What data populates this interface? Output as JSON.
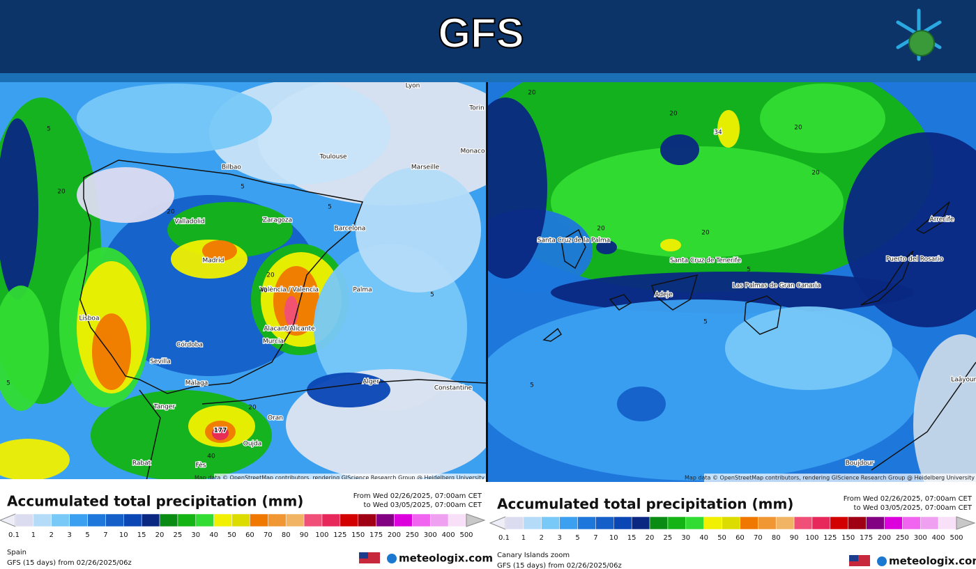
{
  "header": {
    "title": "GFS"
  },
  "legend": {
    "labels": [
      "0.1",
      "1",
      "2",
      "3",
      "5",
      "7",
      "10",
      "15",
      "20",
      "25",
      "30",
      "40",
      "50",
      "60",
      "70",
      "80",
      "90",
      "100",
      "125",
      "150",
      "175",
      "200",
      "250",
      "300",
      "400",
      "500"
    ],
    "colors": [
      "#dcdcf0",
      "#b4dcf8",
      "#78c8f8",
      "#3ca0f0",
      "#1e78dc",
      "#1460c8",
      "#0a46b4",
      "#0a2882",
      "#0a8c14",
      "#14b414",
      "#32dc32",
      "#f0f000",
      "#dcdc00",
      "#f07800",
      "#f09632",
      "#f0b464",
      "#f05078",
      "#e6285a",
      "#d20000",
      "#a00014",
      "#820082",
      "#dc00dc",
      "#f064f0",
      "#f0a0f0",
      "#f8e0f8"
    ]
  },
  "panels": [
    {
      "title": "Accumulated total precipitation (mm)",
      "date_from": "From Wed 02/26/2025, 07:00am CET",
      "date_to": "to Wed 03/05/2025, 07:00am CET",
      "region": "Spain",
      "model_line": "GFS (15 days) from  02/26/2025/06z",
      "brand": "meteologix.com",
      "credit": "Map data © OpenStreetMap contributors, rendering GIScience Research Group @ Heidelberg University",
      "places": [
        "Lyon",
        "Torin",
        "Toulouse",
        "Monaco",
        "Bilbao",
        "Marseille",
        "Valladolid",
        "Zaragoza",
        "Barcelona",
        "Madrid",
        "València / Valencia",
        "Palma",
        "Lisboa",
        "Alacant/Alicante",
        "Murcia",
        "Córdoba",
        "Sevilla",
        "Málaga",
        "Alger",
        "Constantine",
        "Tanger",
        "Oran",
        "Oujda",
        "Rabat",
        "Fès",
        "177"
      ],
      "contours": [
        "5",
        "5",
        "20",
        "20",
        "5",
        "5",
        "40",
        "20",
        "40",
        "20",
        "5"
      ]
    },
    {
      "title": "Accumulated total precipitation (mm)",
      "date_from": "From Wed 02/26/2025, 07:00am CET",
      "date_to": "to Wed 03/05/2025, 07:00am CET",
      "region": "Canary Islands zoom",
      "model_line": "GFS (15 days) from  02/26/2025/06z",
      "brand": "meteologix.com",
      "credit": "Map data © OpenStreetMap contributors, rendering GIScience Research Group @ Heidelberg University",
      "places": [
        "Santa Cruz de la Palma",
        "Santa Cruz de Tenerife",
        "Adeje",
        "Las Palmas de Gran Canaria",
        "Puerto del Rosario",
        "Arrecife",
        "Boujdour",
        "Laâyoune",
        "34"
      ],
      "contours": [
        "20",
        "20",
        "20",
        "20",
        "20",
        "20",
        "5",
        "5",
        "5"
      ]
    }
  ]
}
